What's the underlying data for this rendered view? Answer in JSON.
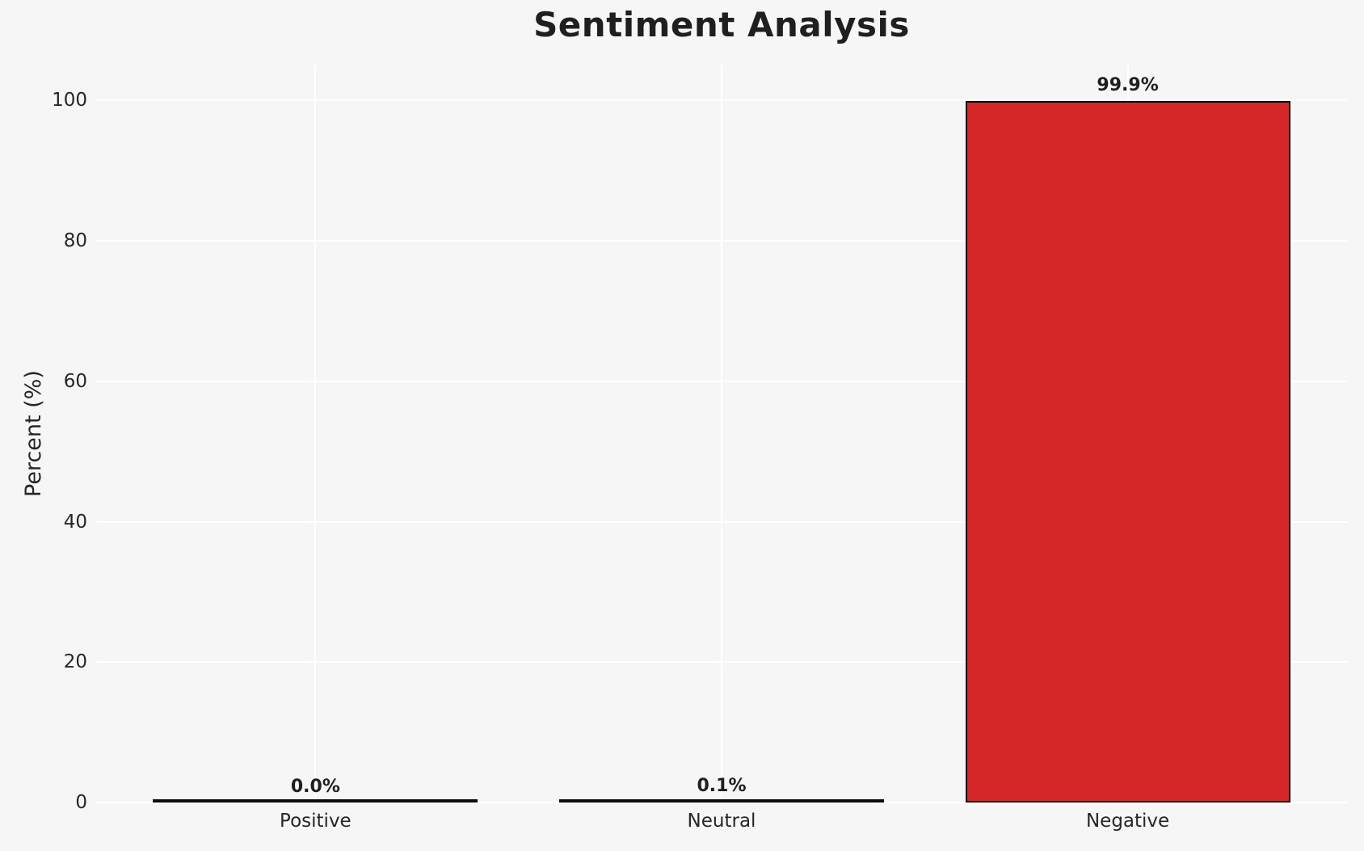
{
  "chart_data": {
    "type": "bar",
    "title": "Sentiment Analysis",
    "xlabel": "",
    "ylabel": "Percent (%)",
    "categories": [
      "Positive",
      "Neutral",
      "Negative"
    ],
    "values": [
      0.0,
      0.1,
      99.9
    ],
    "bar_labels": [
      "0.0%",
      "0.1%",
      "99.9%"
    ],
    "yticks": [
      0,
      20,
      40,
      60,
      80,
      100
    ],
    "ytick_labels": [
      "0",
      "20",
      "40",
      "60",
      "80",
      "100"
    ],
    "ylim": [
      0,
      105
    ],
    "xlim": [
      -0.54,
      2.54
    ],
    "bar_width_fraction": 0.8,
    "grid": true,
    "legend": false,
    "colors": {
      "figure_background": "#f6f6f6",
      "gridline": "#ffffff",
      "bar_fills": [
        null,
        null,
        "#d62728"
      ],
      "bar_edge": "#0d0d0d",
      "title_text": "#1f1f1f",
      "label_text": "#262626"
    }
  }
}
